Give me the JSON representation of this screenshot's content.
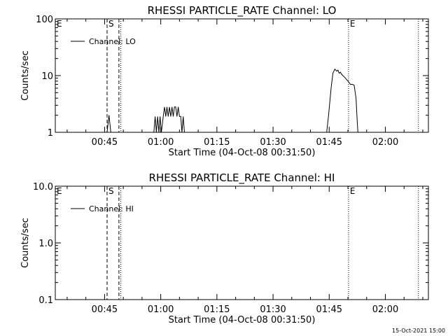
{
  "stamp": "15-Oct-2021 15:00",
  "chart_data": [
    {
      "type": "line",
      "title": "RHESSI PARTICLE_RATE Channel: LO",
      "xlabel": "Start Time (04-Oct-08 00:31:50)",
      "ylabel": "Counts/sec",
      "yscale": "log",
      "ylim": [
        1,
        100
      ],
      "yticks": [
        "1",
        "10",
        "100"
      ],
      "xlim": [
        "00:31:50",
        "02:11:30"
      ],
      "xticks": [
        "00:45",
        "01:00",
        "01:15",
        "01:30",
        "01:45",
        "02:00"
      ],
      "legend": {
        "placement": "top-left",
        "entries": [
          "Channel: LO"
        ]
      },
      "grid": false,
      "markers": [
        {
          "label": "E",
          "time": "00:31:50",
          "style": "none"
        },
        {
          "label": "S",
          "time": "00:45:40",
          "style": "dashed"
        },
        {
          "label": "",
          "time": "00:48:50",
          "style": "dashed"
        },
        {
          "label": "",
          "time": "00:49:20",
          "style": "dotted"
        },
        {
          "label": "E",
          "time": "01:50:10",
          "style": "dotted"
        },
        {
          "label": "",
          "time": "02:08:50",
          "style": "dotted"
        }
      ],
      "series": [
        {
          "name": "Channel: LO",
          "segments": [
            [
              [
                "00:45:40",
                1
              ],
              [
                "00:46:10",
                2
              ],
              [
                "00:46:40",
                1
              ]
            ],
            [
              [
                "00:58:10",
                1
              ],
              [
                "00:58:30",
                1.9
              ],
              [
                "00:58:50",
                1
              ],
              [
                "00:59:10",
                1.9
              ],
              [
                "00:59:30",
                1
              ],
              [
                "00:59:50",
                1.9
              ],
              [
                "01:00:10",
                1
              ],
              [
                "01:00:40",
                1.9
              ],
              [
                "01:01:00",
                2.8
              ],
              [
                "01:01:20",
                1.9
              ],
              [
                "01:01:40",
                2.8
              ],
              [
                "01:02:00",
                1.9
              ],
              [
                "01:02:20",
                2.8
              ],
              [
                "01:02:40",
                1.9
              ],
              [
                "01:03:00",
                2.8
              ],
              [
                "01:03:20",
                1.9
              ],
              [
                "01:03:40",
                2.8
              ],
              [
                "01:04:00",
                2.8
              ],
              [
                "01:04:20",
                1.9
              ],
              [
                "01:04:40",
                2.8
              ],
              [
                "01:05:00",
                1.9
              ],
              [
                "01:05:20",
                1.9
              ],
              [
                "01:05:40",
                1
              ],
              [
                "01:06:00",
                1.9
              ],
              [
                "01:06:20",
                1
              ]
            ],
            [
              [
                "01:44:20",
                1
              ],
              [
                "01:44:50",
                2
              ],
              [
                "01:45:30",
                6
              ],
              [
                "01:46:00",
                11
              ],
              [
                "01:46:30",
                13
              ],
              [
                "01:47:00",
                12
              ],
              [
                "01:47:20",
                12.5
              ],
              [
                "01:47:40",
                11
              ],
              [
                "01:48:00",
                11.5
              ],
              [
                "01:48:20",
                10.5
              ],
              [
                "01:48:40",
                10
              ],
              [
                "01:49:00",
                9.5
              ],
              [
                "01:49:20",
                9
              ],
              [
                "01:49:40",
                8.5
              ],
              [
                "01:50:00",
                8
              ],
              [
                "01:50:20",
                7.5
              ],
              [
                "01:50:40",
                7
              ],
              [
                "01:51:10",
                7
              ],
              [
                "01:51:40",
                6.8
              ],
              [
                "01:52:10",
                4
              ],
              [
                "01:52:30",
                1.5
              ],
              [
                "01:52:40",
                1
              ]
            ]
          ]
        }
      ]
    },
    {
      "type": "line",
      "title": "RHESSI PARTICLE_RATE Channel: HI",
      "xlabel": "Start Time (04-Oct-08 00:31:50)",
      "ylabel": "Counts/sec",
      "yscale": "log",
      "ylim": [
        0.1,
        10
      ],
      "yticks": [
        "0.1",
        "1.0",
        "10.0"
      ],
      "xlim": [
        "00:31:50",
        "02:11:30"
      ],
      "xticks": [
        "00:45",
        "01:00",
        "01:15",
        "01:30",
        "01:45",
        "02:00"
      ],
      "legend": {
        "placement": "top-left",
        "entries": [
          "Channel: HI"
        ]
      },
      "grid": false,
      "markers": [
        {
          "label": "E",
          "time": "00:31:50",
          "style": "none"
        },
        {
          "label": "S",
          "time": "00:45:40",
          "style": "dashed"
        },
        {
          "label": "",
          "time": "00:48:50",
          "style": "dashed"
        },
        {
          "label": "",
          "time": "00:49:20",
          "style": "dotted"
        },
        {
          "label": "E",
          "time": "01:50:10",
          "style": "dotted"
        },
        {
          "label": "",
          "time": "02:08:50",
          "style": "dotted"
        }
      ],
      "series": [
        {
          "name": "Channel: HI",
          "segments": []
        }
      ]
    }
  ]
}
